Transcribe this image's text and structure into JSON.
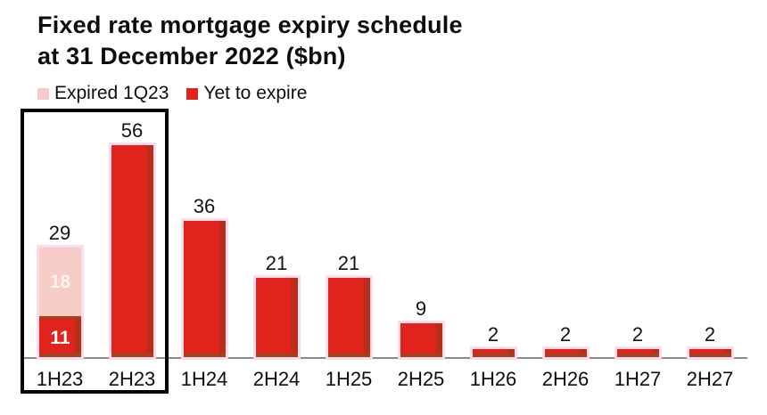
{
  "title": {
    "line1": "Fixed rate mortgage expiry schedule",
    "line2": "at 31 December 2022 ($bn)"
  },
  "legend": [
    {
      "label": "Expired 1Q23",
      "color": "#F5CDC6"
    },
    {
      "label": "Yet to expire",
      "color": "#E0231C"
    }
  ],
  "colors": {
    "red": "#E0231C",
    "expired_pink": "#F5CDC6",
    "halo_pink": "#FBDCEF",
    "edge_brown": "#A0441D",
    "axis_gray": "#8A8A8A",
    "box_black": "#000000",
    "text_black": "#0D0D0D"
  },
  "chart_data": {
    "type": "bar",
    "stacked": true,
    "title": "Fixed rate mortgage expiry schedule at 31 December 2022 ($bn)",
    "xlabel": "",
    "ylabel": "$bn",
    "ylim": [
      0,
      60
    ],
    "grid": false,
    "legend_position": "top-left",
    "categories": [
      "1H23",
      "2H23",
      "1H24",
      "2H24",
      "1H25",
      "2H25",
      "1H26",
      "2H26",
      "1H27",
      "2H27"
    ],
    "series": [
      {
        "name": "Expired 1Q23",
        "values": [
          18,
          0,
          0,
          0,
          0,
          0,
          0,
          0,
          0,
          0
        ]
      },
      {
        "name": "Yet to expire",
        "values": [
          11,
          56,
          36,
          21,
          21,
          9,
          2,
          2,
          2,
          2
        ]
      }
    ],
    "totals": [
      29,
      56,
      36,
      21,
      21,
      9,
      2,
      2,
      2,
      2
    ],
    "segment_labels": [
      {
        "category": "1H23",
        "series": "Expired 1Q23",
        "label": "18"
      },
      {
        "category": "1H23",
        "series": "Yet to expire",
        "label": "11"
      }
    ],
    "highlight_box_categories": [
      "1H23",
      "2H23"
    ]
  }
}
